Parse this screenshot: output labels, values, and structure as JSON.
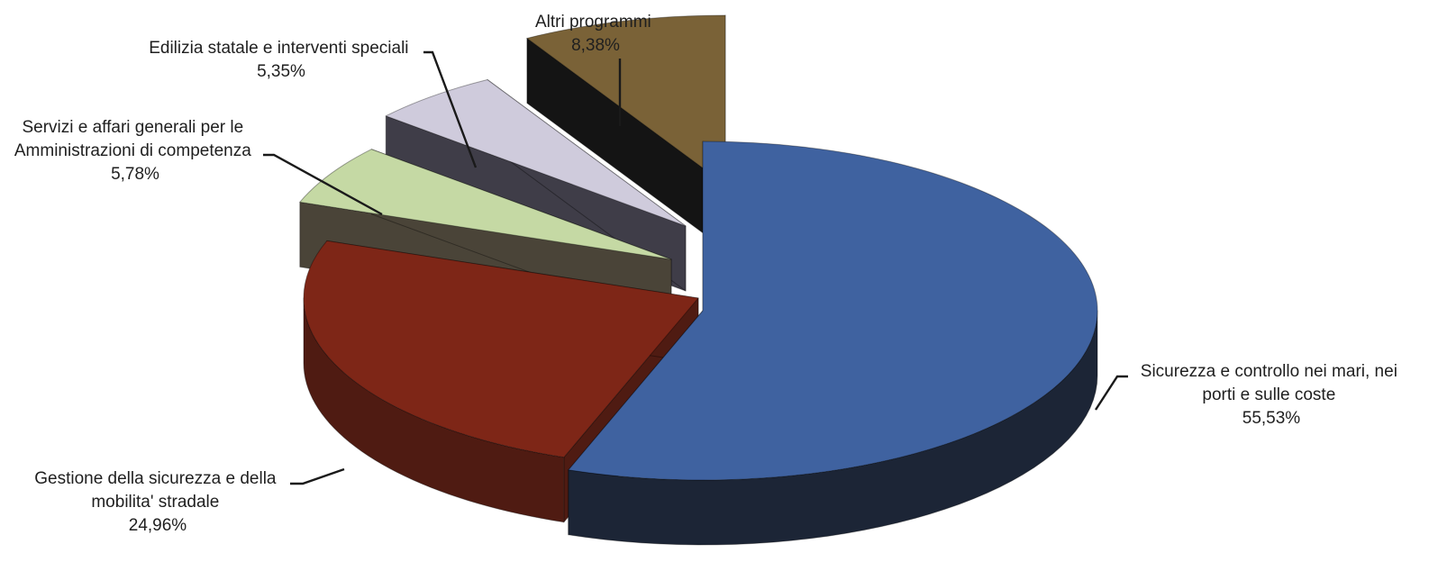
{
  "chart_data": {
    "type": "pie",
    "title": "",
    "slices": [
      {
        "key": "sicurezza_mari",
        "label_lines": [
          "Sicurezza e controllo nei mari, nei",
          "porti e sulle coste"
        ],
        "value_label": "55,53%",
        "value": 55.53,
        "top_color": "#3f62a0",
        "side_color": "#1c2536"
      },
      {
        "key": "sicurezza_stradale",
        "label_lines": [
          "Gestione della sicurezza e della",
          "mobilita' stradale"
        ],
        "value_label": "24,96%",
        "value": 24.96,
        "top_color": "#7e2617",
        "side_color": "#4f1b12"
      },
      {
        "key": "servizi_affari",
        "label_lines": [
          "Servizi e affari generali per le",
          "Amministrazioni di competenza"
        ],
        "value_label": "5,78%",
        "value": 5.78,
        "top_color": "#c5d9a4",
        "side_color": "#4a4438"
      },
      {
        "key": "edilizia",
        "label_lines": [
          "Edilizia statale e interventi speciali"
        ],
        "value_label": "5,35%",
        "value": 5.35,
        "top_color": "#cfcbdc",
        "side_color": "#3f3d48"
      },
      {
        "key": "altri",
        "label_lines": [
          "Altri programmi"
        ],
        "value_label": "8,38%",
        "value": 8.38,
        "top_color": "#7a6237",
        "side_color": "#141414"
      }
    ],
    "legend": "none",
    "style": "3d exploded pie"
  }
}
